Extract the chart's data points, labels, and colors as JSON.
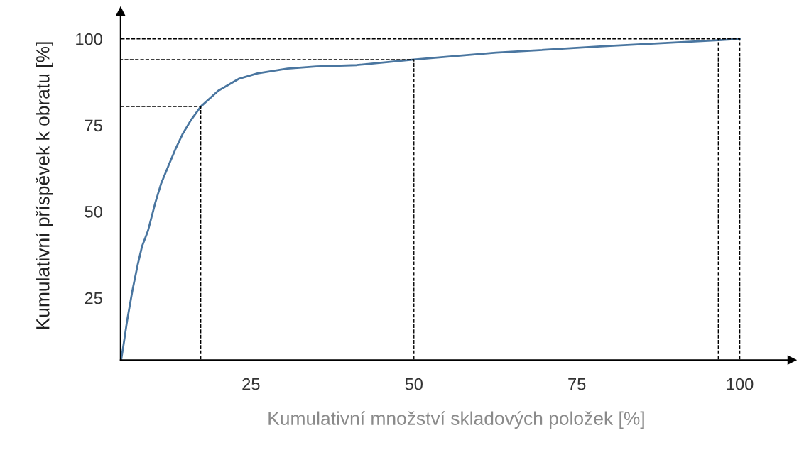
{
  "chart_data": {
    "type": "line",
    "xlabel": "Kumulativní množství skladových položek [%]",
    "ylabel": "Kumulativní příspěvek k obratu [%]",
    "xlim": [
      5,
      108
    ],
    "ylim": [
      7,
      108
    ],
    "xticks": [
      25,
      50,
      75,
      100
    ],
    "yticks": [
      25,
      50,
      75,
      100
    ],
    "grid": false,
    "series": [
      {
        "color": "#4a76a0",
        "line_style": "solid",
        "x": [
          5.1,
          5.5,
          6.0,
          6.8,
          7.6,
          8.3,
          9.2,
          10.3,
          11.2,
          12.4,
          13.4,
          14.5,
          15.8,
          17.3,
          20,
          23.1,
          26,
          30.6,
          35,
          41.2,
          50,
          62.6,
          78.6,
          96.7,
          100
        ],
        "values": [
          7.2,
          12,
          18.4,
          27,
          34.4,
          40,
          44.4,
          52.4,
          58,
          63.5,
          68,
          72.4,
          76.5,
          80.4,
          85,
          88.4,
          90,
          91.4,
          92,
          92.4,
          94,
          96,
          97.8,
          99.6,
          100
        ]
      },
      {
        "color": "#000000",
        "line_style": "dashed",
        "x": [
          17.3,
          17.3,
          5.1
        ],
        "values": [
          7.2,
          80.4,
          80.4
        ]
      },
      {
        "color": "#000000",
        "line_style": "dashed",
        "x": [
          50,
          50,
          5.1
        ],
        "values": [
          7.2,
          94,
          94
        ]
      },
      {
        "color": "#000000",
        "line_style": "dashed",
        "x": [
          96.7,
          96.7
        ],
        "values": [
          7.2,
          100
        ]
      },
      {
        "color": "#000000",
        "line_style": "dashed",
        "x": [
          100,
          100,
          5.1
        ],
        "values": [
          7.2,
          100,
          100
        ]
      }
    ]
  }
}
